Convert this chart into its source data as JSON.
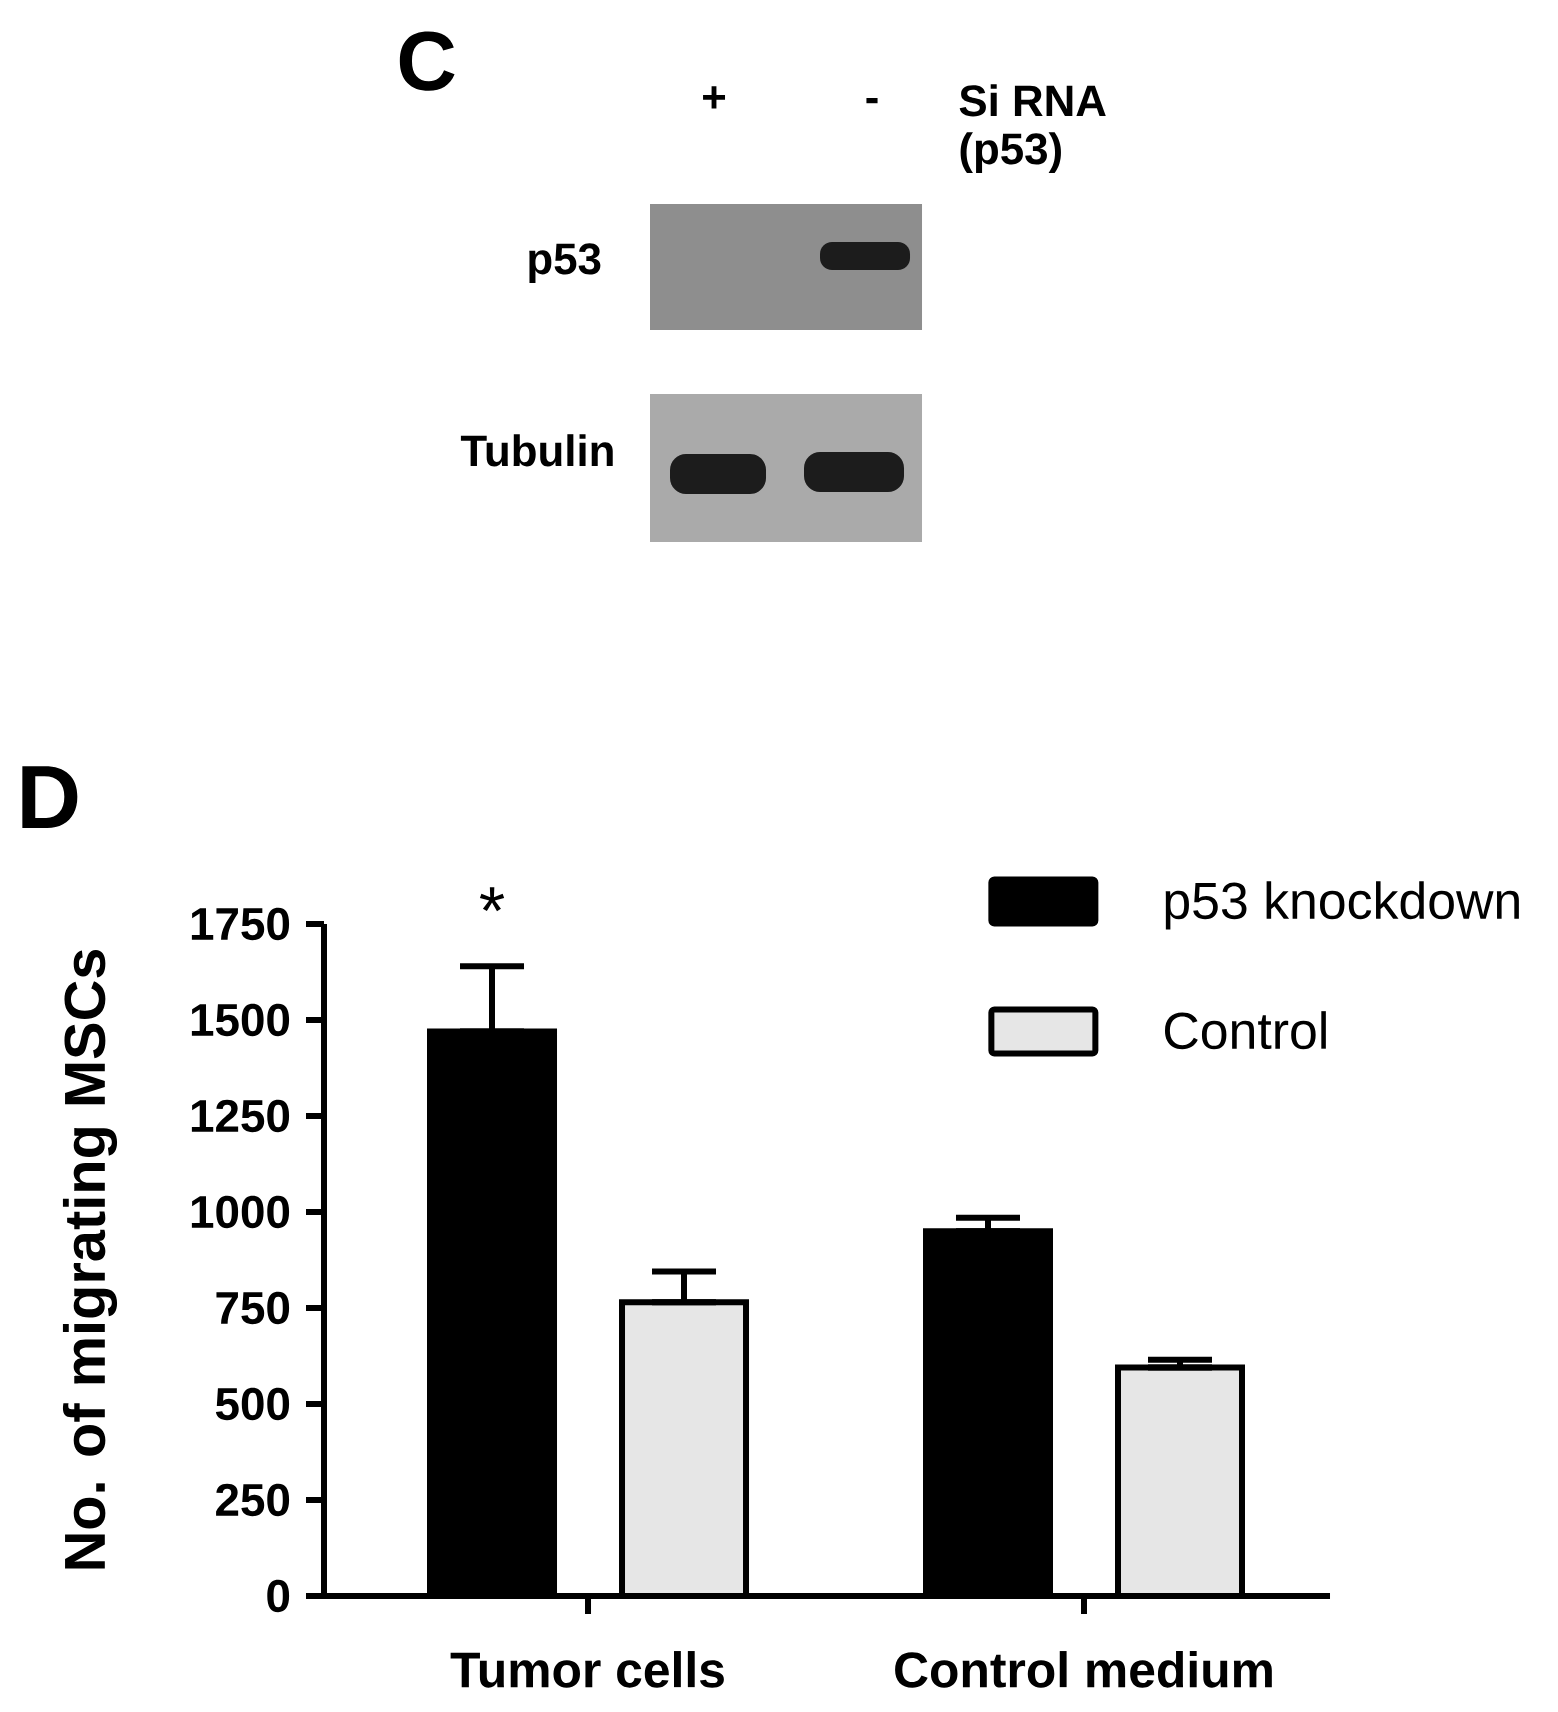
{
  "chart_data": [
    {
      "type": "other",
      "title": "C",
      "annotations": [
        "+",
        "-",
        "Si RNA",
        "(p53)",
        "p53",
        "Tubulin"
      ]
    },
    {
      "type": "bar",
      "title": "D",
      "ylabel": "No. of migrating MSCs",
      "categories": [
        "Tumor cells",
        "Control medium"
      ],
      "series": [
        {
          "name": "p53 knockdown",
          "color": "#000000",
          "values": [
            1470,
            950
          ],
          "errors": [
            [
              1470,
              1640
            ],
            [
              950,
              985
            ]
          ]
        },
        {
          "name": "Control",
          "color": "#e6e6e6",
          "values": [
            765,
            595
          ],
          "errors": [
            [
              765,
              845
            ],
            [
              595,
              615
            ]
          ]
        }
      ],
      "ylim": [
        0,
        1750
      ],
      "yticks": [
        0,
        250,
        500,
        750,
        1000,
        1250,
        1500,
        1750
      ],
      "legend": "top right",
      "annotations": [
        "*"
      ]
    }
  ]
}
